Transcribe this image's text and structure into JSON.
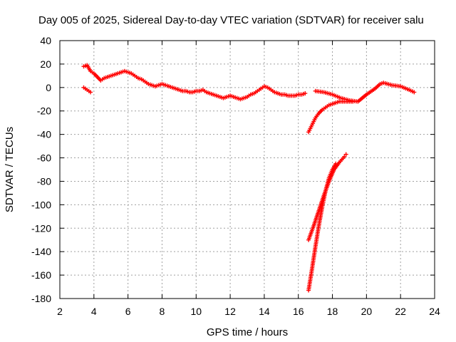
{
  "chart_data": {
    "type": "scatter",
    "title": "Day 005 of 2025, Sidereal Day-to-day VTEC variation (SDTVAR) for receiver salu",
    "xlabel": "GPS time / hours",
    "ylabel": "SDTVAR / TECUs",
    "xlim": [
      2,
      24
    ],
    "ylim": [
      -180,
      40
    ],
    "xticks": [
      2,
      4,
      6,
      8,
      10,
      12,
      14,
      16,
      18,
      20,
      22,
      24
    ],
    "yticks": [
      -180,
      -160,
      -140,
      -120,
      -100,
      -80,
      -60,
      -40,
      -20,
      0,
      20,
      40
    ],
    "grid": true,
    "marker": "plus",
    "color": "#ff0000",
    "series": [
      {
        "name": "main-trace",
        "x": [
          3.4,
          3.6,
          3.8,
          4.0,
          4.2,
          4.4,
          4.6,
          4.8,
          5.0,
          5.2,
          5.4,
          5.6,
          5.8,
          6.0,
          6.2,
          6.4,
          6.6,
          6.8,
          7.0,
          7.2,
          7.4,
          7.6,
          7.8,
          8.0,
          8.2,
          8.4,
          8.6,
          8.8,
          9.0,
          9.2,
          9.4,
          9.6,
          9.8,
          10.0,
          10.2,
          10.4,
          10.6,
          10.8,
          11.0,
          11.2,
          11.4,
          11.6,
          11.8,
          12.0,
          12.2,
          12.4,
          12.6,
          12.8,
          13.0,
          13.2,
          13.4,
          13.6,
          13.8,
          14.0,
          14.2,
          14.4,
          14.6,
          14.8,
          15.0,
          15.2,
          15.4,
          15.6,
          15.8,
          16.0,
          16.2,
          16.4
        ],
        "y": [
          18,
          19,
          14,
          12,
          9,
          6,
          8,
          9,
          10,
          11,
          12,
          13,
          14,
          13,
          12,
          10,
          8,
          7,
          5,
          3,
          2,
          1,
          2,
          3,
          2,
          1,
          0,
          -1,
          -2,
          -3,
          -3,
          -4,
          -4,
          -3,
          -3,
          -2,
          -4,
          -5,
          -6,
          -7,
          -8,
          -9,
          -8,
          -7,
          -8,
          -9,
          -10,
          -9,
          -8,
          -6,
          -5,
          -3,
          -1,
          1,
          0,
          -2,
          -4,
          -5,
          -6,
          -6,
          -7,
          -7,
          -7,
          -6,
          -6,
          -5
        ]
      },
      {
        "name": "early-dip",
        "x": [
          3.4,
          3.5,
          3.6,
          3.7,
          3.8
        ],
        "y": [
          0,
          -1,
          -2,
          -3,
          -4
        ]
      },
      {
        "name": "recovery-arc",
        "x": [
          16.6,
          16.8,
          17.0,
          17.2,
          17.4,
          17.6,
          17.8,
          18.0,
          18.2,
          18.4,
          18.6,
          18.8,
          19.0,
          19.2
        ],
        "y": [
          -38,
          -32,
          -26,
          -22,
          -19,
          -17,
          -15,
          -14,
          -13,
          -12,
          -12,
          -12,
          -12,
          -12
        ]
      },
      {
        "name": "evening-trace",
        "x": [
          17.0,
          17.5,
          18.0,
          18.5,
          19.0,
          19.5,
          20.0,
          20.5,
          20.8,
          21.0,
          21.5,
          22.0,
          22.5,
          22.8
        ],
        "y": [
          -3,
          -4,
          -6,
          -9,
          -11,
          -12,
          -6,
          -1,
          3,
          4,
          2,
          1,
          -2,
          -4
        ]
      },
      {
        "name": "steep-branch-upper",
        "x": [
          16.6,
          16.9,
          17.2,
          17.5,
          17.8,
          18.1,
          18.4,
          18.7,
          18.8
        ],
        "y": [
          -130,
          -118,
          -105,
          -92,
          -80,
          -70,
          -64,
          -59,
          -57
        ]
      },
      {
        "name": "steep-branch-lower",
        "x": [
          16.6,
          16.8,
          17.0,
          17.2,
          17.4,
          17.6,
          17.8,
          18.0,
          18.2
        ],
        "y": [
          -173,
          -155,
          -136,
          -118,
          -102,
          -88,
          -77,
          -70,
          -65
        ]
      }
    ]
  }
}
